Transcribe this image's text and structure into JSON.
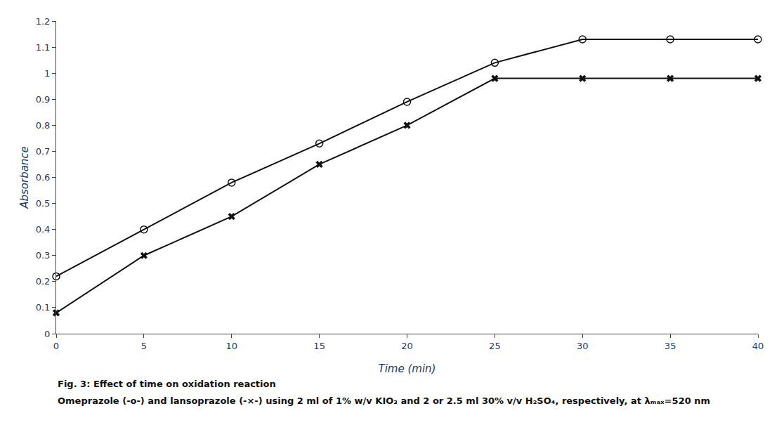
{
  "chart_data": {
    "type": "line",
    "x": [
      0,
      5,
      10,
      15,
      20,
      25,
      30,
      35,
      40
    ],
    "series": [
      {
        "values": [
          0.22,
          0.4,
          0.58,
          0.73,
          0.89,
          1.04,
          1.13,
          1.13,
          1.13
        ],
        "color": "#111111",
        "marker": "circle-open",
        "line_style": "solid"
      },
      {
        "values": [
          0.08,
          0.3,
          0.45,
          0.65,
          0.8,
          0.98,
          0.98,
          0.98,
          0.98
        ],
        "color": "#111111",
        "marker": "x",
        "line_style": "solid"
      }
    ],
    "xlabel": "Time (min)",
    "ylabel": "Absorbance",
    "xlim": [
      0,
      40
    ],
    "ylim": [
      0,
      1.2
    ],
    "xticks": [
      0,
      5,
      10,
      15,
      20,
      25,
      30,
      35,
      40
    ],
    "yticks": [
      0,
      0.1,
      0.2,
      0.3,
      0.4,
      0.5,
      0.6,
      0.7,
      0.8,
      0.9,
      1,
      1.1,
      1.2
    ],
    "grid": false,
    "annotations": [
      "Fig. 3: Effect of time on oxidation reaction",
      "Omeprazole (-o-) and lansoprazole (-×-) using 2 ml of 1% w/v KIO₃ and 2 or 2.5 ml 30% v/v H₂SO₄, respectively, at λₘₐₓ=520 nm"
    ]
  }
}
